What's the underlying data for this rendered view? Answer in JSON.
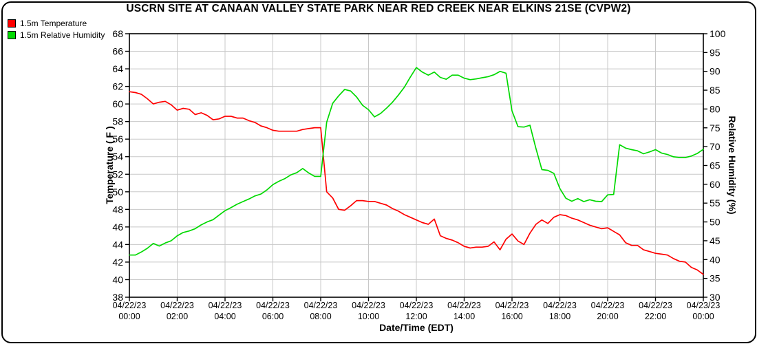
{
  "title": "USCRN SITE AT CANAAN VALLEY STATE PARK NEAR RED CREEK NEAR ELKINS 21SE (CVPW2)",
  "legend": {
    "items": [
      {
        "label": "1.5m Temperature",
        "color": "#ff0000"
      },
      {
        "label": "1.5m Relative Humidity",
        "color": "#00d900"
      }
    ]
  },
  "chart_data": {
    "type": "line",
    "title": "USCRN SITE AT CANAAN VALLEY STATE PARK NEAR RED CREEK NEAR ELKINS 21SE (CVPW2)",
    "xlabel": "Date/Time (EDT)",
    "ylabel_left": "Temperature ( F )",
    "ylabel_right": "Relative Humidity (%)",
    "grid": true,
    "legend_position": "top-left",
    "y_left_axis": {
      "min": 38,
      "max": 68,
      "step": 2,
      "ticks": [
        38,
        40,
        42,
        44,
        46,
        48,
        50,
        52,
        54,
        56,
        58,
        60,
        62,
        64,
        66,
        68
      ]
    },
    "y_right_axis": {
      "min": 30,
      "max": 100,
      "step": 5,
      "ticks": [
        30,
        35,
        40,
        45,
        50,
        55,
        60,
        65,
        70,
        75,
        80,
        85,
        90,
        95,
        100
      ]
    },
    "x_axis": {
      "start_hour": 0,
      "end_hour": 24,
      "ticks": [
        {
          "hour": 0,
          "date": "04/22/23",
          "time": "00:00"
        },
        {
          "hour": 2,
          "date": "04/22/23",
          "time": "02:00"
        },
        {
          "hour": 4,
          "date": "04/22/23",
          "time": "04:00"
        },
        {
          "hour": 6,
          "date": "04/22/23",
          "time": "06:00"
        },
        {
          "hour": 8,
          "date": "04/22/23",
          "time": "08:00"
        },
        {
          "hour": 10,
          "date": "04/22/23",
          "time": "10:00"
        },
        {
          "hour": 12,
          "date": "04/22/23",
          "time": "12:00"
        },
        {
          "hour": 14,
          "date": "04/22/23",
          "time": "14:00"
        },
        {
          "hour": 16,
          "date": "04/22/23",
          "time": "16:00"
        },
        {
          "hour": 18,
          "date": "04/22/23",
          "time": "18:00"
        },
        {
          "hour": 20,
          "date": "04/22/23",
          "time": "20:00"
        },
        {
          "hour": 22,
          "date": "04/22/23",
          "time": "22:00"
        },
        {
          "hour": 24,
          "date": "04/23/23",
          "time": "00:00"
        }
      ]
    },
    "sampling_interval_minutes": 15,
    "series": [
      {
        "name": "1.5m Temperature",
        "axis": "left",
        "color": "#ff0000",
        "unit": "F",
        "values": [
          61.4,
          61.3,
          61.1,
          60.6,
          60.0,
          60.2,
          60.3,
          59.9,
          59.3,
          59.5,
          59.4,
          58.8,
          59.0,
          58.7,
          58.2,
          58.3,
          58.6,
          58.6,
          58.4,
          58.4,
          58.1,
          57.9,
          57.5,
          57.3,
          57.0,
          56.9,
          56.9,
          56.9,
          56.9,
          57.1,
          57.2,
          57.3,
          57.3,
          50.0,
          49.3,
          48.0,
          47.9,
          48.4,
          49.0,
          49.0,
          48.9,
          48.9,
          48.7,
          48.5,
          48.1,
          47.8,
          47.4,
          47.1,
          46.8,
          46.5,
          46.3,
          46.9,
          45.0,
          44.7,
          44.5,
          44.2,
          43.8,
          43.6,
          43.7,
          43.7,
          43.8,
          44.3,
          43.4,
          44.6,
          45.2,
          44.4,
          44.0,
          45.3,
          46.3,
          46.8,
          46.4,
          47.1,
          47.4,
          47.3,
          47.0,
          46.8,
          46.5,
          46.2,
          46.0,
          45.8,
          45.9,
          45.5,
          45.1,
          44.2,
          43.9,
          43.9,
          43.4,
          43.2,
          43.0,
          42.9,
          42.8,
          42.4,
          42.1,
          42.0,
          41.4,
          41.1,
          40.6
        ]
      },
      {
        "name": "1.5m Relative Humidity",
        "axis": "right",
        "color": "#00d900",
        "unit": "%",
        "values": [
          41.2,
          41.2,
          42.0,
          43.0,
          44.3,
          43.6,
          44.4,
          45.0,
          46.3,
          47.2,
          47.6,
          48.2,
          49.2,
          50.0,
          50.6,
          51.8,
          53.0,
          53.8,
          54.7,
          55.4,
          56.1,
          56.9,
          57.4,
          58.5,
          59.9,
          60.8,
          61.5,
          62.5,
          63.1,
          64.2,
          63.0,
          62.1,
          62.1,
          76.5,
          81.5,
          83.5,
          85.2,
          84.8,
          83.2,
          81.0,
          79.8,
          77.9,
          78.8,
          80.2,
          81.8,
          83.7,
          85.8,
          88.5,
          91.0,
          89.8,
          89.0,
          89.8,
          88.4,
          87.9,
          89.0,
          89.0,
          88.2,
          87.8,
          88.0,
          88.3,
          88.6,
          89.1,
          90.0,
          89.5,
          79.5,
          75.3,
          75.2,
          75.7,
          69.5,
          63.9,
          63.7,
          62.9,
          58.9,
          56.3,
          55.5,
          56.2,
          55.4,
          55.9,
          55.5,
          55.4,
          57.2,
          57.3,
          70.5,
          69.6,
          69.2,
          68.9,
          68.1,
          68.6,
          69.2,
          68.3,
          67.9,
          67.3,
          67.1,
          67.1,
          67.5,
          68.2,
          69.3
        ]
      }
    ],
    "colors": {
      "grid": "#c8c8c8",
      "axis": "#000000",
      "background": "#ffffff"
    }
  }
}
